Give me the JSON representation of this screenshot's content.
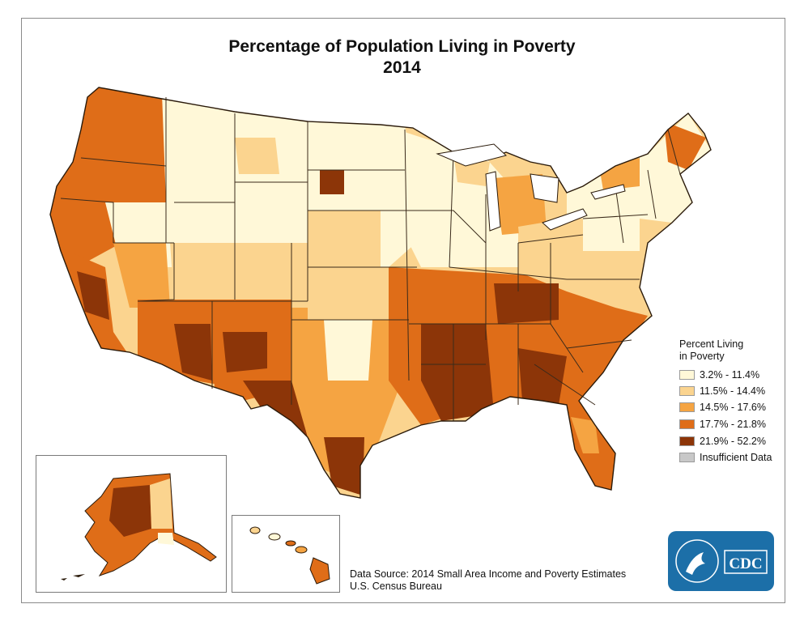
{
  "map": {
    "title_line1": "Percentage of Population Living in Poverty",
    "title_line2": "2014",
    "legend": {
      "title_line1": "Percent Living",
      "title_line2": "in Poverty",
      "items": [
        {
          "label": "3.2% - 11.4%",
          "color": "#fff8d8"
        },
        {
          "label": "11.5% - 14.4%",
          "color": "#fbd48f"
        },
        {
          "label": "14.5% - 17.6%",
          "color": "#f5a442"
        },
        {
          "label": "17.7% - 21.8%",
          "color": "#df6d18"
        },
        {
          "label": "21.9% - 52.2%",
          "color": "#8c3508"
        },
        {
          "label": "Insufficient Data",
          "color": "#c8c8c8"
        }
      ]
    },
    "source_line1": "Data Source: 2014 Small Area Income and Poverty Estimates",
    "source_line2": "U.S. Census Bureau",
    "logo_text": "CDC",
    "border_color": "#3a2a1a"
  }
}
